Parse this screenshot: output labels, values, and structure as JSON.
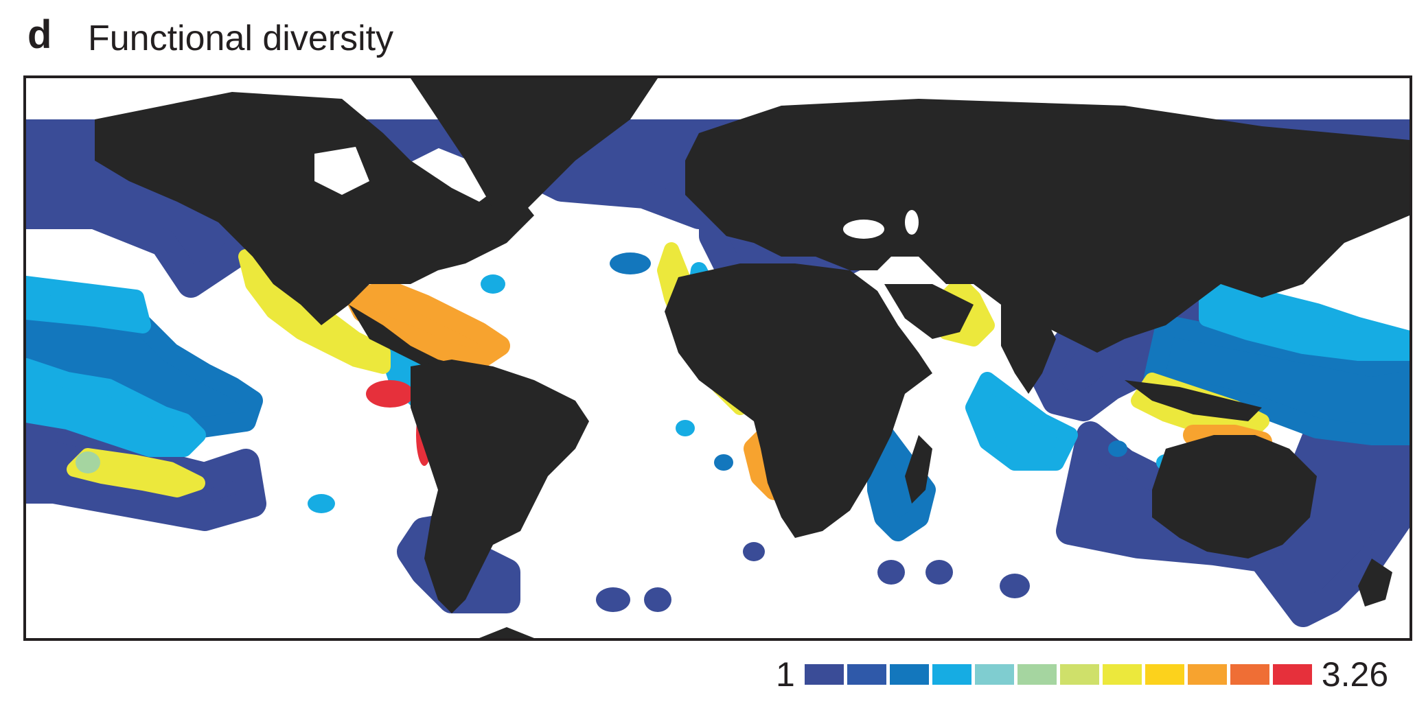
{
  "panel": {
    "letter": "d",
    "title": "Functional diversity"
  },
  "legend": {
    "min_label": "1",
    "max_label": "3.26",
    "colors": [
      "#3a4c97",
      "#2f59a9",
      "#1377bd",
      "#16ace3",
      "#7fcdd0",
      "#a5d5a0",
      "#cfe06a",
      "#ece83c",
      "#fcd21c",
      "#f7a32f",
      "#ef6e35",
      "#e6303b"
    ]
  },
  "map": {
    "land_color": "#262626",
    "coast_colors": {
      "high_latitude": "#3a4c97",
      "temperate": "#1377bd",
      "subtropical": "#16ace3",
      "tropical": "#ece83c",
      "caribbean": "#f7a32f",
      "peak": "#e6303b"
    }
  }
}
